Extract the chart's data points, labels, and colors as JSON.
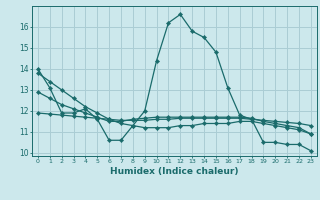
{
  "bg_color": "#cce8ec",
  "grid_color": "#aacdd4",
  "line_color": "#1a6b6b",
  "xlabel": "Humidex (Indice chaleur)",
  "xlim": [
    -0.5,
    23.5
  ],
  "ylim": [
    9.85,
    17.0
  ],
  "yticks": [
    10,
    11,
    12,
    13,
    14,
    15,
    16
  ],
  "xticks": [
    0,
    1,
    2,
    3,
    4,
    5,
    6,
    7,
    8,
    9,
    10,
    11,
    12,
    13,
    14,
    15,
    16,
    17,
    18,
    19,
    20,
    21,
    22,
    23
  ],
  "series": [
    {
      "x": [
        0,
        1,
        2,
        3,
        4,
        5,
        6,
        7,
        8,
        9,
        10,
        11,
        12,
        13,
        14,
        15,
        16,
        17,
        18,
        19,
        20,
        21,
        22,
        23
      ],
      "y": [
        14.0,
        13.1,
        11.9,
        11.9,
        12.1,
        11.6,
        10.6,
        10.6,
        11.3,
        12.0,
        14.4,
        16.2,
        16.6,
        15.8,
        15.5,
        14.8,
        13.1,
        11.8,
        11.6,
        10.5,
        10.5,
        10.4,
        10.4,
        10.1
      ]
    },
    {
      "x": [
        0,
        1,
        2,
        3,
        4,
        5,
        6,
        7,
        8,
        9,
        10,
        11,
        12,
        13,
        14,
        15,
        16,
        17,
        18,
        19,
        20,
        21,
        22,
        23
      ],
      "y": [
        11.9,
        11.85,
        11.8,
        11.75,
        11.7,
        11.65,
        11.6,
        11.55,
        11.55,
        11.55,
        11.6,
        11.6,
        11.65,
        11.65,
        11.65,
        11.65,
        11.65,
        11.65,
        11.6,
        11.55,
        11.5,
        11.45,
        11.4,
        11.3
      ]
    },
    {
      "x": [
        0,
        1,
        2,
        3,
        4,
        5,
        6,
        7,
        8,
        9,
        10,
        11,
        12,
        13,
        14,
        15,
        16,
        17,
        18,
        19,
        20,
        21,
        22,
        23
      ],
      "y": [
        13.8,
        13.4,
        13.0,
        12.6,
        12.2,
        11.9,
        11.6,
        11.4,
        11.3,
        11.2,
        11.2,
        11.2,
        11.3,
        11.3,
        11.4,
        11.4,
        11.4,
        11.5,
        11.5,
        11.4,
        11.3,
        11.2,
        11.1,
        10.9
      ]
    },
    {
      "x": [
        0,
        1,
        2,
        3,
        4,
        5,
        6,
        7,
        8,
        9,
        10,
        11,
        12,
        13,
        14,
        15,
        16,
        17,
        18,
        19,
        20,
        21,
        22,
        23
      ],
      "y": [
        12.9,
        12.6,
        12.3,
        12.1,
        11.9,
        11.7,
        11.5,
        11.5,
        11.6,
        11.65,
        11.7,
        11.7,
        11.7,
        11.7,
        11.7,
        11.7,
        11.7,
        11.7,
        11.65,
        11.5,
        11.4,
        11.3,
        11.2,
        10.9
      ]
    }
  ]
}
